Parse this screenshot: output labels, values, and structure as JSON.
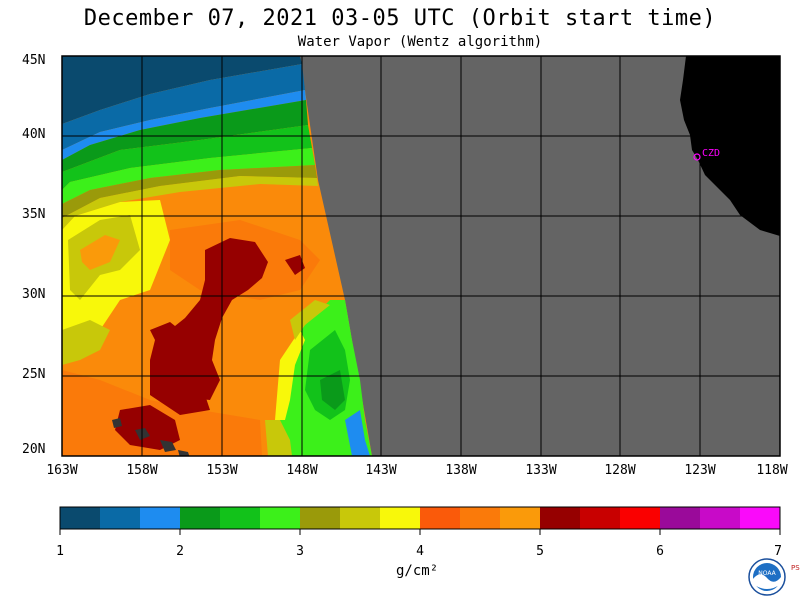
{
  "title": "December 07, 2021  03-05 UTC  (Orbit start time)",
  "subtitle": "Water Vapor (Wentz algorithm)",
  "map": {
    "lat_labels": [
      "45N",
      "40N",
      "35N",
      "30N",
      "25N",
      "20N"
    ],
    "lon_labels": [
      "163W",
      "158W",
      "153W",
      "148W",
      "143W",
      "138W",
      "133W",
      "128W",
      "123W",
      "118W"
    ],
    "lat_range": [
      20,
      45
    ],
    "lon_range": [
      -163,
      -118
    ],
    "gridlines": true,
    "no_data_color": "#646464",
    "land_color": "#000000",
    "station_label": "CZD",
    "station_color": "#ff00ff"
  },
  "colorbar": {
    "tick_labels": [
      "1",
      "2",
      "3",
      "4",
      "5",
      "6",
      "7"
    ],
    "unit_label": "g/cm²",
    "range": [
      1,
      7
    ],
    "colors": [
      "#0a4a6e",
      "#0a6aa6",
      "#1e8cf0",
      "#0a9a1a",
      "#12c21a",
      "#3cf01a",
      "#9a9a0a",
      "#c8c80a",
      "#f8f80a",
      "#fa5a0a",
      "#fa7a0a",
      "#fa9a0a",
      "#960000",
      "#c80000",
      "#fa0000",
      "#9a0a9a",
      "#c80ac8",
      "#fa0afa"
    ]
  },
  "logo": {
    "name": "NOAA",
    "side_text": "PSL"
  }
}
